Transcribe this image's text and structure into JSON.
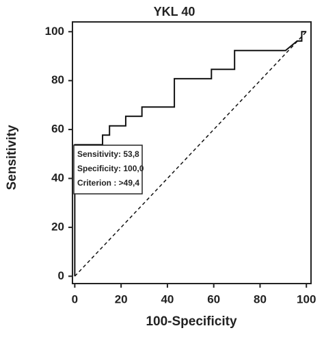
{
  "chart_data": {
    "type": "line",
    "title": "YKL 40",
    "xlabel": "100-Specificity",
    "ylabel": "Sensitivity",
    "xlim": [
      -1,
      102
    ],
    "ylim": [
      -3,
      104
    ],
    "xticks": [
      0,
      20,
      40,
      60,
      80,
      100
    ],
    "yticks": [
      0,
      20,
      40,
      60,
      80,
      100
    ],
    "series": [
      {
        "color": "#111111",
        "dashed": false,
        "x": [
          0,
          0,
          12,
          12,
          15,
          15,
          22,
          22,
          29,
          29,
          43,
          43,
          59,
          59,
          69,
          69,
          91,
          96,
          98,
          98,
          100
        ],
        "values": [
          0,
          53.8,
          53.8,
          57.7,
          57.7,
          61.5,
          61.5,
          65.4,
          65.4,
          69.2,
          69.2,
          80.8,
          80.8,
          84.6,
          84.6,
          92.3,
          92.3,
          96.2,
          96.2,
          100,
          100
        ]
      },
      {
        "color": "#111111",
        "dashed": true,
        "x": [
          0,
          100
        ],
        "values": [
          0,
          100
        ]
      }
    ],
    "annotation": [
      "Sensitivity: 53,8",
      "Specificity: 100,0",
      "Criterion : >49,4"
    ]
  }
}
